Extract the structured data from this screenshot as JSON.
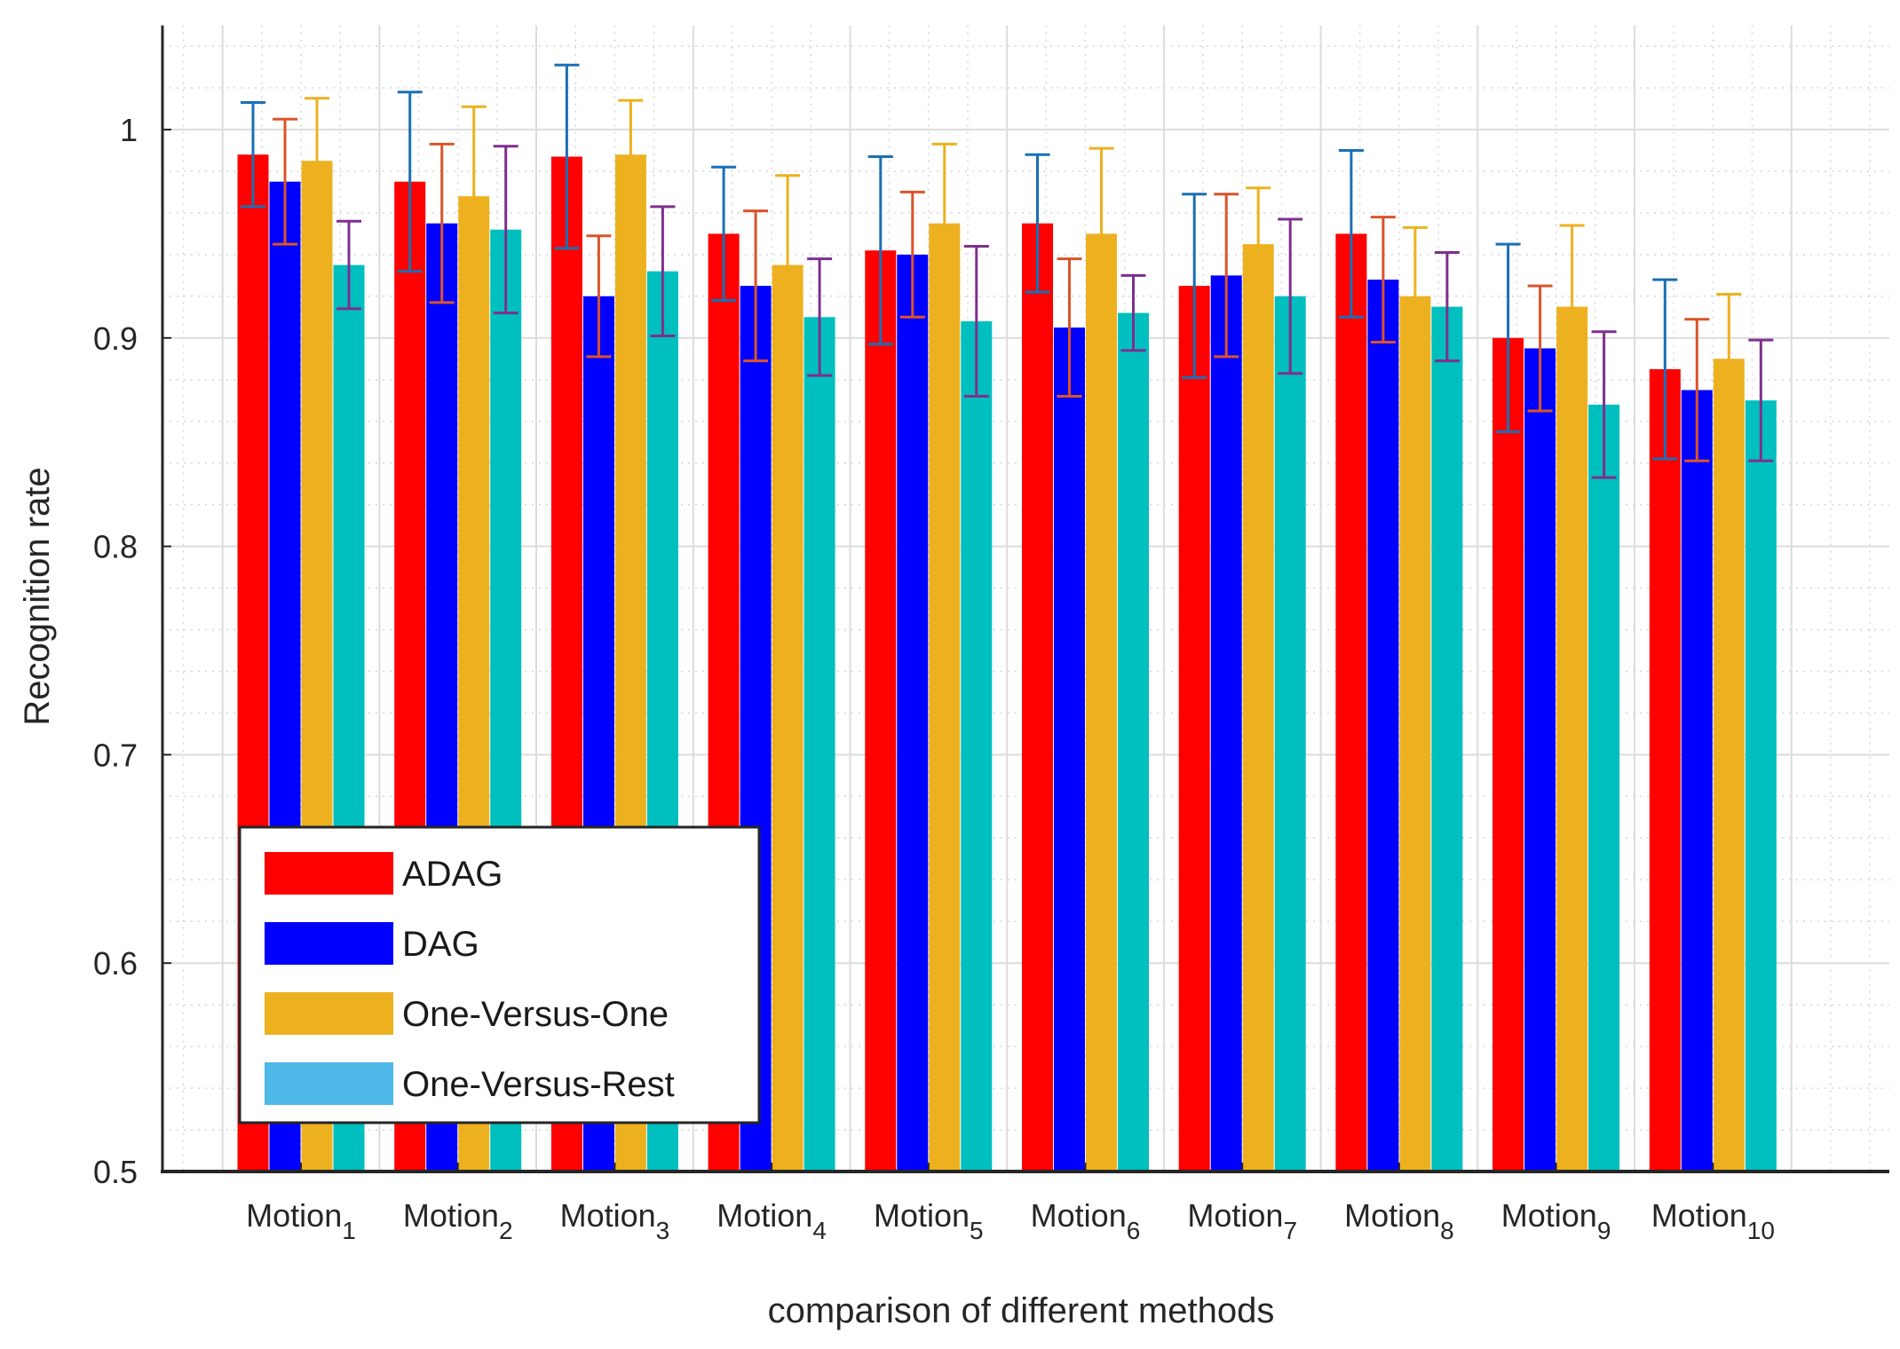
{
  "chart_data": {
    "type": "bar",
    "title": "",
    "xlabel": "comparison of different methods",
    "ylabel": "Recognition rate",
    "ylim": [
      0.5,
      1.05
    ],
    "yticks": [
      "0.5",
      "0.6",
      "0.7",
      "0.8",
      "0.9",
      "1"
    ],
    "categories": [
      {
        "base": "Motion",
        "sub": "1"
      },
      {
        "base": "Motion",
        "sub": "2"
      },
      {
        "base": "Motion",
        "sub": "3"
      },
      {
        "base": "Motion",
        "sub": "4"
      },
      {
        "base": "Motion",
        "sub": "5"
      },
      {
        "base": "Motion",
        "sub": "6"
      },
      {
        "base": "Motion",
        "sub": "7"
      },
      {
        "base": "Motion",
        "sub": "8"
      },
      {
        "base": "Motion",
        "sub": "9"
      },
      {
        "base": "Motion",
        "sub": "10"
      }
    ],
    "grid": true,
    "legend_position": "bottom-left",
    "series": [
      {
        "name": "ADAG",
        "color": "#ff0000",
        "error_color": "#1a6fb5",
        "values": [
          0.988,
          0.975,
          0.987,
          0.95,
          0.942,
          0.955,
          0.925,
          0.95,
          0.9,
          0.885
        ],
        "errors": [
          0.025,
          0.043,
          0.044,
          0.032,
          0.045,
          0.033,
          0.044,
          0.04,
          0.045,
          0.043
        ]
      },
      {
        "name": "DAG",
        "color": "#0000ff",
        "error_color": "#d9542a",
        "values": [
          0.975,
          0.955,
          0.92,
          0.925,
          0.94,
          0.905,
          0.93,
          0.928,
          0.895,
          0.875
        ],
        "errors": [
          0.03,
          0.038,
          0.029,
          0.036,
          0.03,
          0.033,
          0.039,
          0.03,
          0.03,
          0.034
        ]
      },
      {
        "name": "One-Versus-One",
        "color": "#edb120",
        "error_color": "#edb120",
        "values": [
          0.985,
          0.968,
          0.988,
          0.935,
          0.955,
          0.95,
          0.945,
          0.92,
          0.915,
          0.89
        ],
        "errors": [
          0.03,
          0.043,
          0.026,
          0.043,
          0.038,
          0.041,
          0.027,
          0.033,
          0.039,
          0.031
        ]
      },
      {
        "name": "One-Versus-Rest",
        "color": "#00bfbf",
        "error_color": "#7e2f8e",
        "legend_color": "#4db8e8",
        "values": [
          0.935,
          0.952,
          0.932,
          0.91,
          0.908,
          0.912,
          0.92,
          0.915,
          0.868,
          0.87
        ],
        "errors": [
          0.021,
          0.04,
          0.031,
          0.028,
          0.036,
          0.018,
          0.037,
          0.026,
          0.035,
          0.029
        ]
      }
    ]
  }
}
